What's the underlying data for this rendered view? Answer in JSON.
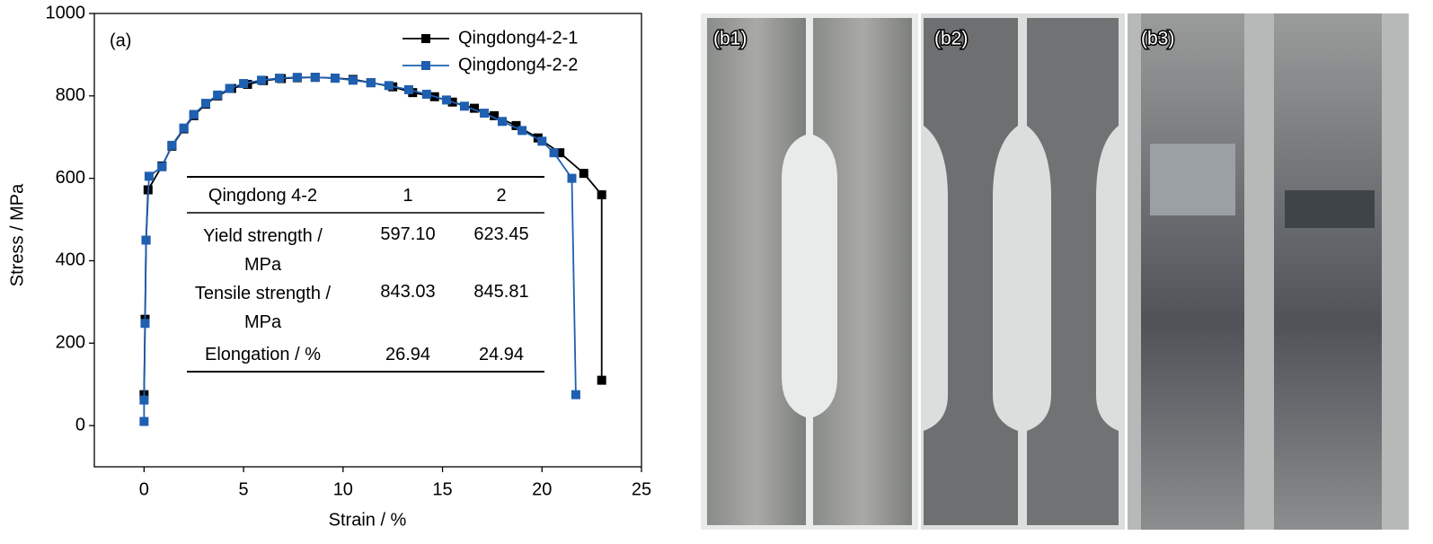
{
  "chart_data": {
    "type": "line",
    "panel_label": "(a)",
    "x_label": "Strain / %",
    "y_label": "Stress / MPa",
    "xlim": [
      -2.5,
      25
    ],
    "ylim": [
      -100,
      1000
    ],
    "xticks": [
      0,
      5,
      10,
      15,
      20,
      25
    ],
    "yticks": [
      0,
      200,
      400,
      600,
      800,
      1000
    ],
    "legend": "top-right",
    "series": [
      {
        "name": "Qingdong4-2-1",
        "color": "#000000",
        "x": [
          0,
          0.05,
          0.1,
          0.2,
          0.9,
          1.4,
          2.0,
          2.5,
          3.1,
          3.7,
          4.4,
          5.2,
          6.0,
          6.9,
          7.7,
          8.6,
          9.6,
          10.5,
          11.4,
          12.5,
          13.5,
          14.6,
          15.5,
          16.6,
          17.6,
          18.7,
          19.8,
          20.9,
          22.1,
          23.0,
          23.0
        ],
        "values": [
          75,
          258,
          450,
          572,
          630,
          678,
          720,
          752,
          780,
          800,
          818,
          828,
          837,
          842,
          844,
          845,
          843,
          840,
          832,
          822,
          808,
          798,
          785,
          770,
          752,
          728,
          698,
          662,
          612,
          560,
          110
        ]
      },
      {
        "name": "Qingdong4-2-2",
        "color": "#1f5fb0",
        "x": [
          0,
          0,
          0.05,
          0.1,
          0.25,
          0.9,
          1.4,
          2.0,
          2.5,
          3.1,
          3.7,
          4.3,
          5.0,
          5.9,
          6.8,
          7.7,
          8.6,
          9.6,
          10.5,
          11.4,
          12.3,
          13.3,
          14.2,
          15.2,
          16.1,
          17.1,
          18.0,
          19.0,
          20.0,
          20.6,
          21.5,
          21.7
        ],
        "values": [
          10,
          62,
          248,
          450,
          605,
          628,
          680,
          722,
          755,
          782,
          802,
          818,
          830,
          838,
          843,
          845,
          845,
          843,
          838,
          832,
          825,
          815,
          804,
          790,
          775,
          758,
          738,
          716,
          690,
          662,
          600,
          75
        ]
      }
    ],
    "table": {
      "header": [
        "Qingdong 4-2",
        "1",
        "2"
      ],
      "rows": [
        [
          "Yield strength / MPa",
          "597.10",
          "623.45"
        ],
        [
          "Tensile strength / MPa",
          "843.03",
          "845.81"
        ],
        [
          "Elongation / %",
          "26.94",
          "24.94"
        ]
      ]
    }
  },
  "photos": {
    "labels": [
      "(b1)",
      "(b2)",
      "(b3)"
    ]
  }
}
